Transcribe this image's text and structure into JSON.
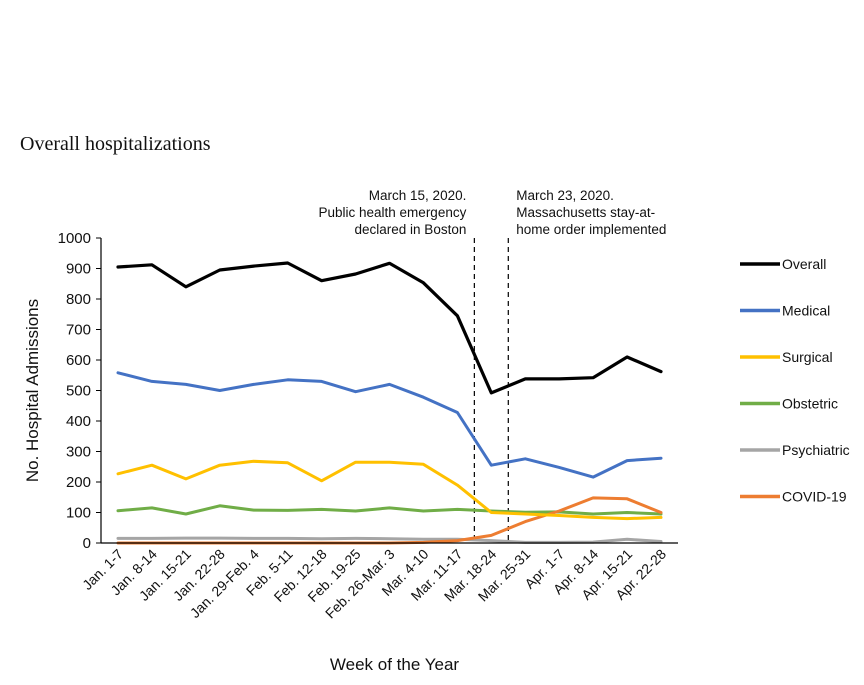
{
  "chart_data": {
    "type": "line",
    "title": "Overall hospitalizations",
    "xlabel": "Week of the Year",
    "ylabel": "No. Hospital Admissions",
    "ylim": [
      0,
      1000
    ],
    "yticks": [
      0,
      100,
      200,
      300,
      400,
      500,
      600,
      700,
      800,
      900,
      1000
    ],
    "categories": [
      "Jan. 1-7",
      "Jan. 8-14",
      "Jan. 15-21",
      "Jan. 22-28",
      "Jan. 29-Feb. 4",
      "Feb. 5-11",
      "Feb. 12-18",
      "Feb. 19-25",
      "Feb. 26-Mar. 3",
      "Mar. 4-10",
      "Mar. 11-17",
      "Mar. 18-24",
      "Mar. 25-31",
      "Apr. 1-7",
      "Apr. 8-14",
      "Apr. 15-21",
      "Apr. 22-28"
    ],
    "series": [
      {
        "name": "Overall",
        "color": "#000000",
        "values": [
          905,
          912,
          840,
          895,
          908,
          918,
          860,
          882,
          917,
          853,
          745,
          492,
          538,
          538,
          542,
          610,
          562
        ]
      },
      {
        "name": "Medical",
        "color": "#4472C4",
        "values": [
          558,
          530,
          520,
          500,
          520,
          535,
          530,
          496,
          520,
          478,
          428,
          255,
          276,
          248,
          216,
          270,
          278
        ]
      },
      {
        "name": "Surgical",
        "color": "#FFC000",
        "values": [
          227,
          255,
          210,
          255,
          268,
          263,
          204,
          265,
          265,
          258,
          190,
          100,
          95,
          90,
          84,
          80,
          84
        ]
      },
      {
        "name": "Obstetric",
        "color": "#70AD47",
        "values": [
          106,
          115,
          95,
          122,
          108,
          107,
          110,
          105,
          115,
          105,
          110,
          105,
          101,
          102,
          95,
          100,
          95
        ]
      },
      {
        "name": "Psychiatric",
        "color": "#A5A5A5",
        "values": [
          15,
          15,
          16,
          16,
          15,
          15,
          14,
          15,
          14,
          12,
          12,
          8,
          2,
          2,
          3,
          12,
          5
        ]
      },
      {
        "name": "COVID-19",
        "color": "#ED7D31",
        "values": [
          0,
          0,
          0,
          0,
          0,
          0,
          0,
          0,
          0,
          2,
          8,
          25,
          70,
          105,
          148,
          145,
          100
        ]
      }
    ],
    "vlines": [
      {
        "after_category": "Mar. 11-17",
        "label_lines": [
          "March 15, 2020.",
          "Public health emergency",
          "declared in Boston"
        ]
      },
      {
        "after_category": "Mar. 18-24",
        "label_lines": [
          "March 23, 2020.",
          "Massachusetts stay-at-",
          "home order implemented"
        ]
      }
    ],
    "legend_position": "right"
  }
}
